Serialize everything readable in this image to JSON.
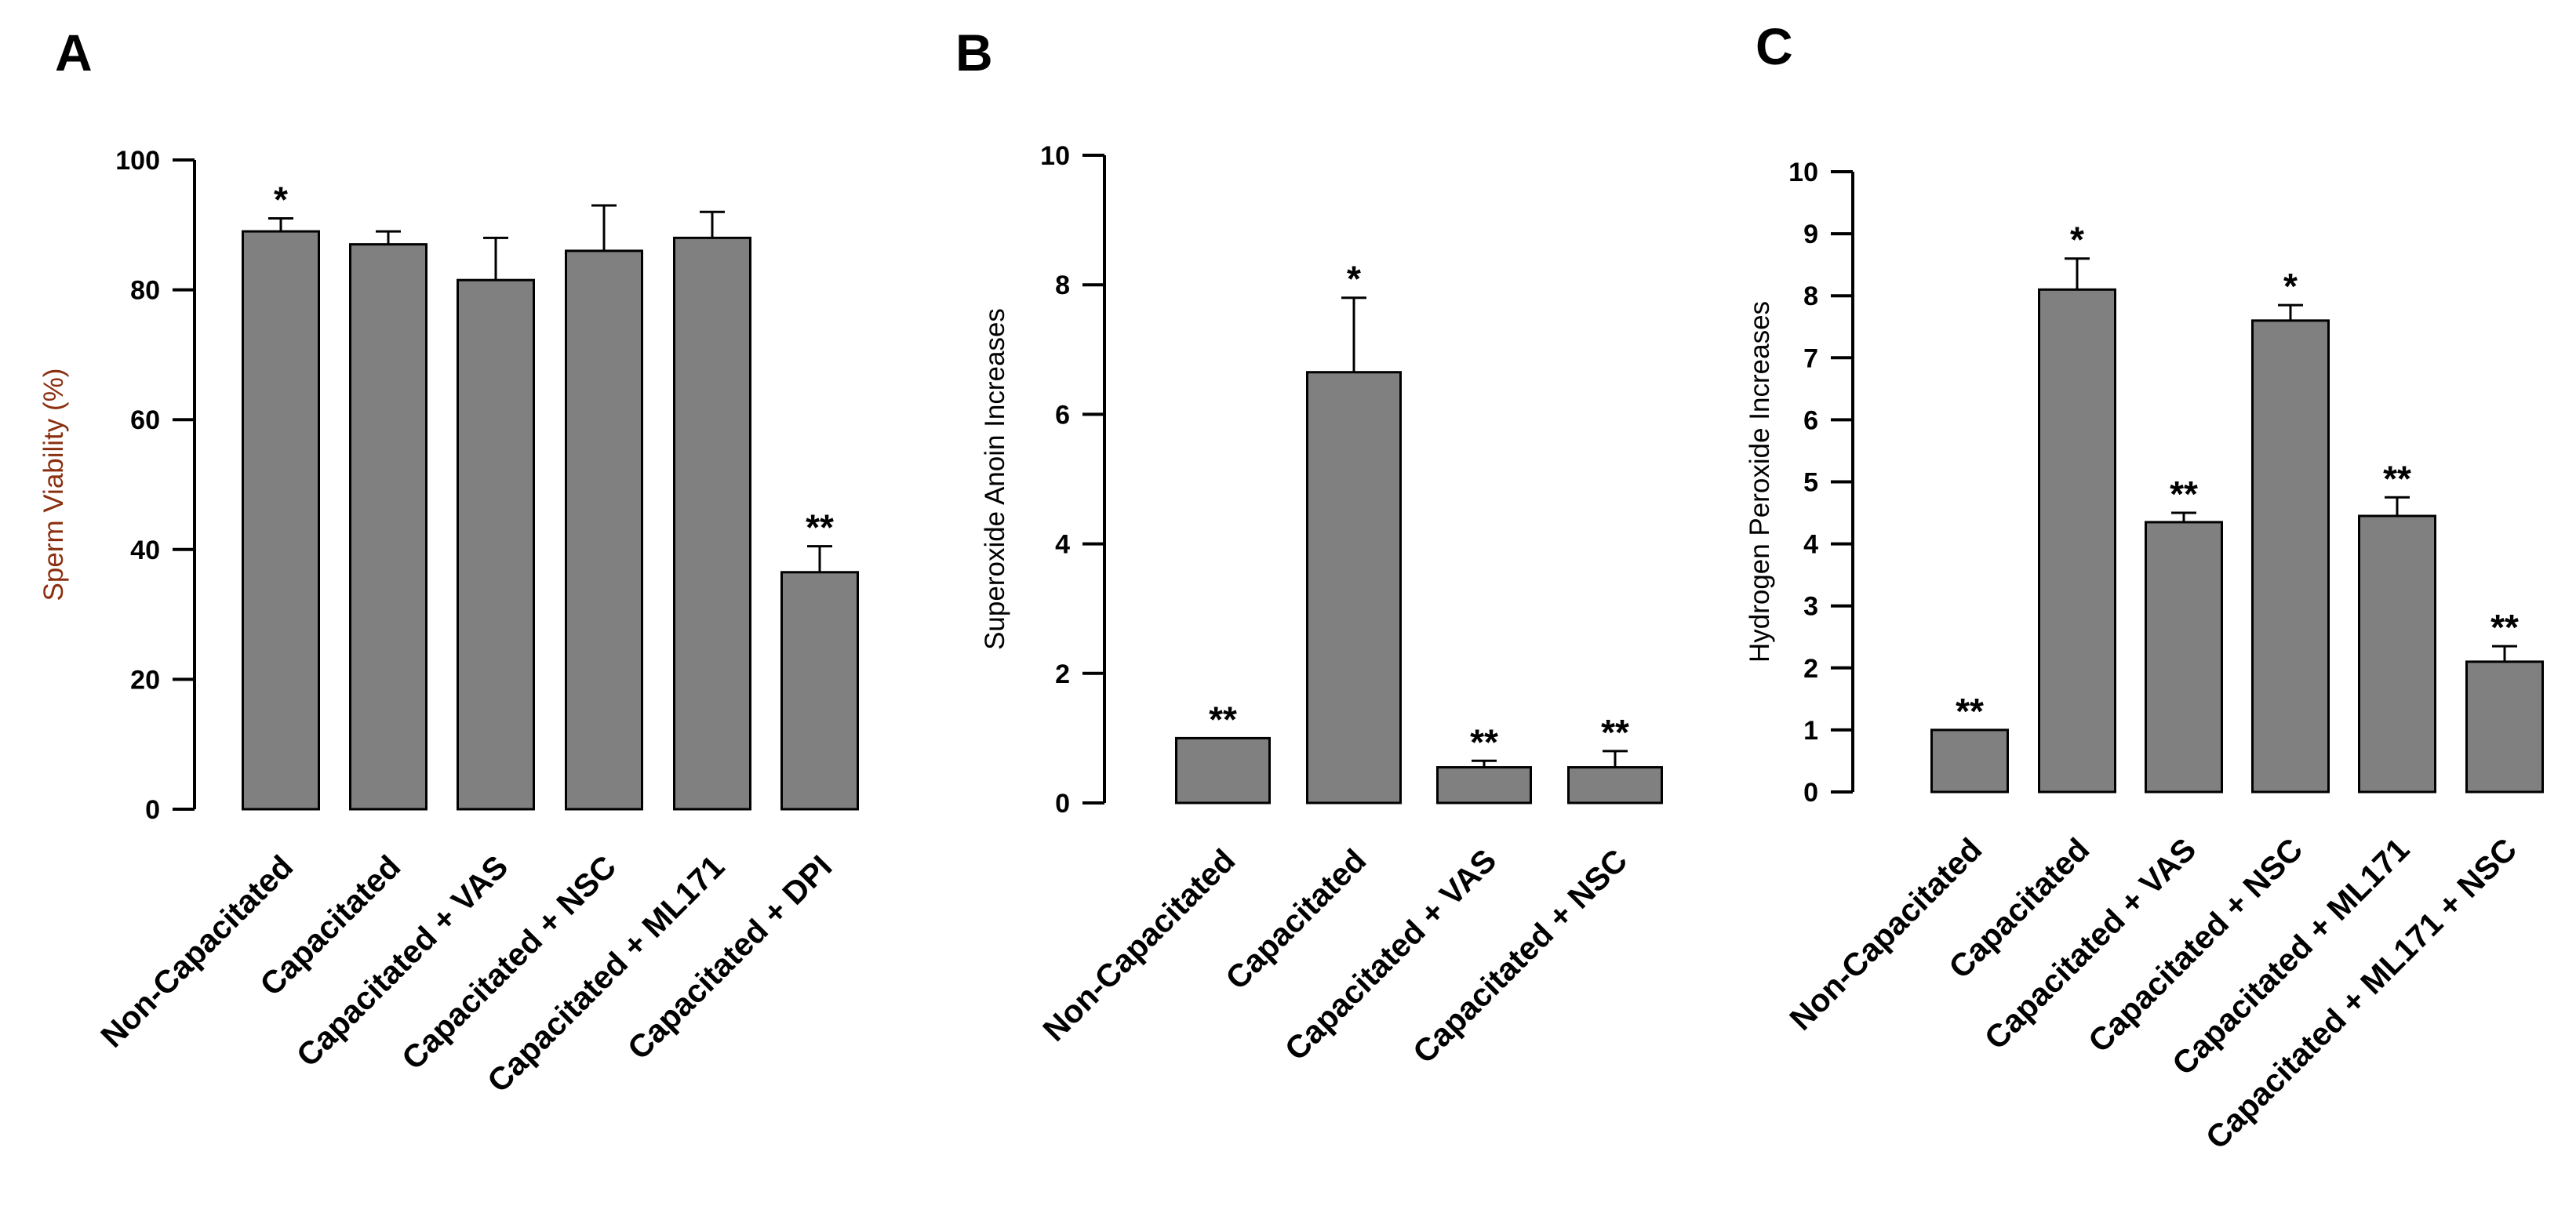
{
  "colors": {
    "bar_fill": "#808080",
    "bar_stroke": "#000000",
    "axis": "#000000",
    "ylabel_a": "#8a3010"
  },
  "chart_data": [
    {
      "type": "bar",
      "panel": "A",
      "title": "",
      "xlabel": "",
      "ylabel": "Sperm Viability (%)",
      "ylim": [
        0,
        100
      ],
      "yticks": [
        0,
        20,
        40,
        60,
        80,
        100
      ],
      "categories": [
        "Non-Capacitated",
        "Capacitated",
        "Capacitated + VAS",
        "Capacitated + NSC",
        "Capacitated + ML171",
        "Capacitated + DPI"
      ],
      "values": [
        89,
        87,
        81.5,
        86,
        88,
        36.5
      ],
      "errors": [
        2,
        2,
        6.5,
        7,
        4,
        4
      ],
      "significance": [
        "*",
        "",
        "",
        "",
        "",
        "**"
      ]
    },
    {
      "type": "bar",
      "panel": "B",
      "title": "",
      "xlabel": "",
      "ylabel": "Superoxide Anoin Increases",
      "ylim": [
        0,
        10
      ],
      "yticks": [
        0,
        2,
        4,
        6,
        8,
        10
      ],
      "categories": [
        "Non-Capacitated",
        "Capacitated",
        "Capacitated + VAS",
        "Capacitated + NSC"
      ],
      "values": [
        1,
        6.65,
        0.55,
        0.55
      ],
      "errors": [
        0,
        1.15,
        0.1,
        0.25
      ],
      "significance": [
        "**",
        "*",
        "**",
        "**"
      ]
    },
    {
      "type": "bar",
      "panel": "C",
      "title": "",
      "xlabel": "",
      "ylabel": "Hydrogen Peroxide Increases",
      "ylim": [
        0,
        10
      ],
      "yticks": [
        0,
        1,
        2,
        3,
        4,
        5,
        6,
        7,
        8,
        9,
        10
      ],
      "categories": [
        "Non-Capacitated",
        "Capacitated",
        "Capacitated + VAS",
        "Capacitated + NSC",
        "Capacitated + ML171",
        "Capacitated + ML171 + NSC"
      ],
      "values": [
        1,
        8.1,
        4.35,
        7.6,
        4.45,
        2.1
      ],
      "errors": [
        0,
        0.5,
        0.15,
        0.25,
        0.3,
        0.25
      ],
      "significance": [
        "**",
        "*",
        "**",
        "*",
        "**",
        "**"
      ]
    }
  ]
}
